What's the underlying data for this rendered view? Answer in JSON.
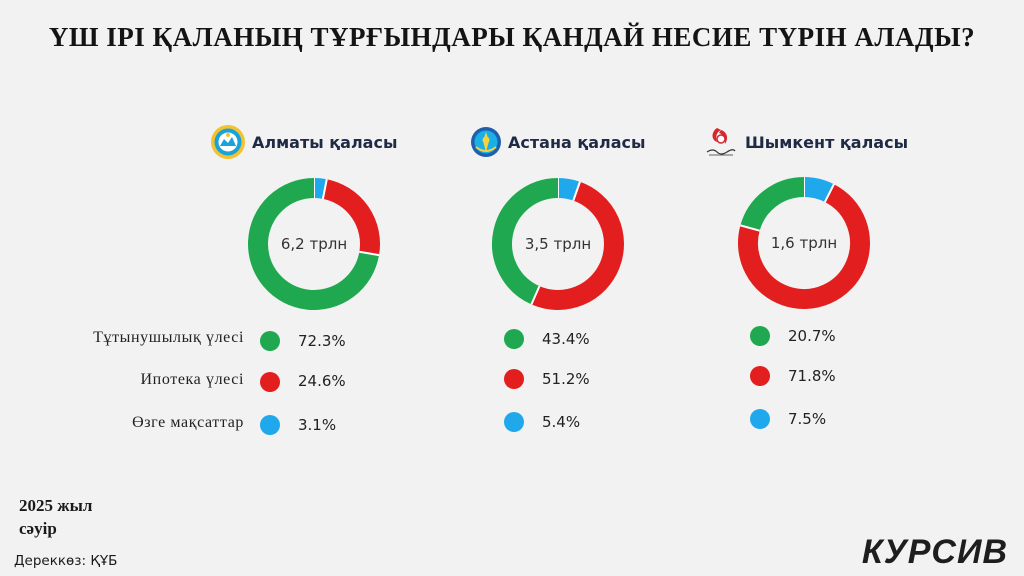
{
  "title": "ҮШ ІРІ ҚАЛАНЫҢ  ТҰРҒЫНДАРЫ ҚАНДАЙ НЕСИЕ ТҮРІН АЛАДЫ?",
  "colors": {
    "green": "#1fa84f",
    "red": "#e31e1e",
    "blue": "#1fa9ec"
  },
  "legend": {
    "consumer": "Тұтынушылық үлесі",
    "mortgage": "Ипотека үлесі",
    "other": "Өзге мақсаттар"
  },
  "chart_data": [
    {
      "type": "pie",
      "title": "Алматы қаласы",
      "center": "6,2 трлн",
      "categories": [
        "Тұтынушылық үлесі",
        "Ипотека үлесі",
        "Өзге мақсаттар"
      ],
      "values": [
        72.3,
        24.6,
        3.1
      ],
      "labels": [
        "72.3%",
        "24.6%",
        "3.1%"
      ]
    },
    {
      "type": "pie",
      "title": "Астана қаласы",
      "center": "3,5 трлн",
      "categories": [
        "Тұтынушылық үлесі",
        "Ипотека үлесі",
        "Өзге мақсаттар"
      ],
      "values": [
        43.4,
        51.2,
        5.4
      ],
      "labels": [
        "43.4%",
        "51.2%",
        "5.4%"
      ]
    },
    {
      "type": "pie",
      "title": "Шымкент қаласы",
      "center": "1,6 трлн",
      "categories": [
        "Тұтынушылық үлесі",
        "Ипотека үлесі",
        "Өзге мақсаттар"
      ],
      "values": [
        20.7,
        71.8,
        7.5
      ],
      "labels": [
        "20.7%",
        "71.8%",
        "7.5%"
      ]
    }
  ],
  "footer": {
    "date_line1": "2025 жыл",
    "date_line2": "сәуір",
    "source": "Дереккөз: ҚҰБ",
    "brand": "КУРСИВ"
  },
  "icons": [
    "almaty-emblem-icon",
    "astana-emblem-icon",
    "shymkent-logo-icon"
  ]
}
